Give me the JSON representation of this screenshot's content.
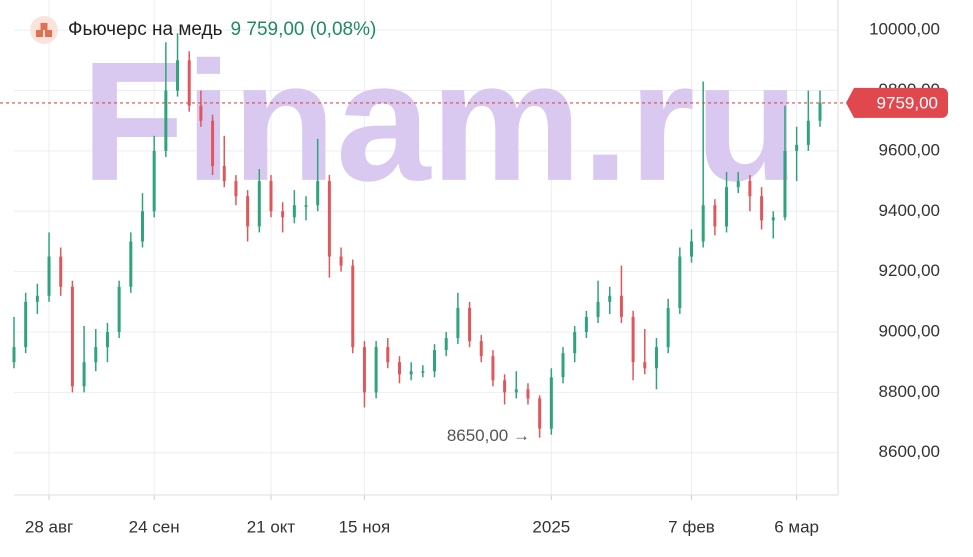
{
  "chart_data": {
    "type": "candlestick",
    "title": "Фьючерс на медь",
    "subtitle": "9 759,00 (0,08%)",
    "watermark": "Finam.ru",
    "categories": [
      null,
      null,
      null,
      "28 авг",
      null,
      null,
      null,
      null,
      null,
      null,
      null,
      null,
      "24 сен",
      null,
      null,
      null,
      null,
      null,
      null,
      null,
      null,
      null,
      "21 окт",
      null,
      null,
      null,
      null,
      null,
      null,
      null,
      "15 ноя",
      null,
      null,
      null,
      null,
      null,
      null,
      null,
      null,
      null,
      null,
      null,
      null,
      null,
      null,
      null,
      "2025",
      null,
      null,
      null,
      null,
      null,
      null,
      null,
      null,
      null,
      null,
      null,
      "7 фев",
      null,
      null,
      null,
      null,
      null,
      null,
      null,
      null,
      "6 мар",
      null,
      null
    ],
    "series": [
      {
        "up_color": "#2fa37c",
        "down_color": "#e0575b",
        "open": [
          8900,
          8950,
          9100,
          9120,
          9250,
          9150,
          8820,
          8900,
          8950,
          9000,
          9150,
          9300,
          9400,
          9600,
          9800,
          9900,
          9750,
          9700,
          9550,
          9500,
          9450,
          9350,
          9500,
          9400,
          9380,
          9420,
          9420,
          9500,
          9250,
          9220,
          8950,
          8800,
          8950,
          8900,
          8860,
          8870,
          8870,
          8940,
          8980,
          9080,
          8970,
          8920,
          8840,
          8800,
          8810,
          8780,
          8680,
          8850,
          8930,
          9000,
          9050,
          9100,
          9120,
          9050,
          8900,
          8880,
          8950,
          9080,
          9250,
          9300,
          9420,
          9350,
          9480,
          9500,
          9450,
          9370,
          9380,
          9600,
          9620,
          9700
        ],
        "high": [
          9050,
          9130,
          9160,
          9330,
          9280,
          9170,
          9020,
          9010,
          9030,
          9170,
          9330,
          9460,
          9650,
          9960,
          9990,
          9930,
          9800,
          9720,
          9650,
          9520,
          9470,
          9540,
          9520,
          9430,
          9470,
          9450,
          9640,
          9520,
          9280,
          9240,
          8970,
          8970,
          8980,
          8920,
          8900,
          8890,
          8960,
          9000,
          9130,
          9100,
          8990,
          8940,
          8860,
          8870,
          8830,
          8790,
          8880,
          8950,
          9020,
          9070,
          9170,
          9150,
          9220,
          9070,
          9010,
          8980,
          9110,
          9280,
          9340,
          9830,
          9440,
          9530,
          9530,
          9520,
          9480,
          9400,
          9750,
          9680,
          9800,
          9800
        ],
        "low": [
          8880,
          8930,
          9060,
          9100,
          9120,
          8800,
          8800,
          8870,
          8900,
          8980,
          9130,
          9280,
          9380,
          9580,
          9780,
          9730,
          9680,
          9520,
          9480,
          9420,
          9300,
          9330,
          9380,
          9330,
          9360,
          9370,
          9400,
          9180,
          9200,
          8930,
          8750,
          8780,
          8880,
          8830,
          8840,
          8850,
          8850,
          8920,
          8960,
          8950,
          8900,
          8820,
          8760,
          8780,
          8760,
          8650,
          8660,
          8830,
          8900,
          8980,
          9030,
          9060,
          9030,
          8840,
          8860,
          8810,
          8930,
          9060,
          9230,
          9280,
          9320,
          9330,
          9460,
          9400,
          9340,
          9310,
          9370,
          9500,
          9600,
          9680
        ],
        "close": [
          8950,
          9100,
          9120,
          9250,
          9150,
          8820,
          8900,
          8950,
          9000,
          9150,
          9300,
          9400,
          9600,
          9800,
          9900,
          9750,
          9700,
          9550,
          9500,
          9450,
          9350,
          9500,
          9400,
          9380,
          9420,
          9420,
          9500,
          9250,
          9220,
          8950,
          8800,
          8950,
          8900,
          8860,
          8870,
          8870,
          8940,
          8980,
          9080,
          8970,
          8920,
          8840,
          8800,
          8810,
          8780,
          8680,
          8850,
          8930,
          9000,
          9050,
          9100,
          9120,
          9050,
          8900,
          8880,
          8950,
          9080,
          9250,
          9300,
          9420,
          9350,
          9480,
          9500,
          9450,
          9370,
          9380,
          9600,
          9620,
          9700,
          9759
        ]
      }
    ],
    "last_price": 9759,
    "last_price_label": "9759,00",
    "last_price_color": "#e0484e",
    "annotations": [
      {
        "text": "8650,00 →",
        "value": 8650
      }
    ],
    "ylim": [
      8460,
      10100
    ],
    "yticks": [
      {
        "value": 8600,
        "label": "8600,00"
      },
      {
        "value": 8800,
        "label": "8800,00"
      },
      {
        "value": 9000,
        "label": "9000,00"
      },
      {
        "value": 9200,
        "label": "9200,00"
      },
      {
        "value": 9400,
        "label": "9400,00"
      },
      {
        "value": 9600,
        "label": "9600,00"
      },
      {
        "value": 9800,
        "label": "9800,00"
      },
      {
        "value": 10000,
        "label": "10000,00"
      }
    ],
    "grid": true
  }
}
